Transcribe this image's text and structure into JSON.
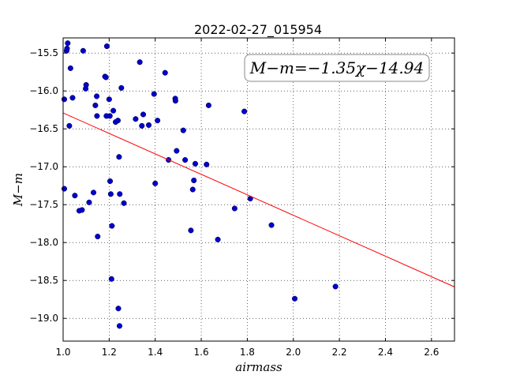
{
  "chart_data": {
    "type": "scatter",
    "title": "2022-02-27_015954",
    "xlabel": "airmass",
    "ylabel": "M−m",
    "xlim": [
      1.0,
      2.7
    ],
    "ylim": [
      -19.3,
      -15.3
    ],
    "xticks": [
      "1.0",
      "1.2",
      "1.4",
      "1.6",
      "1.8",
      "2.0",
      "2.2",
      "2.4",
      "2.6"
    ],
    "yticks": [
      "-15.5",
      "-16.0",
      "-16.5",
      "-17.0",
      "-17.5",
      "-18.0",
      "-18.5",
      "-19.0"
    ],
    "grid": true,
    "annotation": "M−m=−1.35χ−14.94",
    "fit": {
      "slope": -1.35,
      "intercept": -14.94,
      "color": "#ff0000"
    },
    "marker_color": "#0000cc",
    "points": [
      [
        1.005,
        -16.11
      ],
      [
        1.005,
        -17.29
      ],
      [
        1.015,
        -15.47
      ],
      [
        1.017,
        -15.44
      ],
      [
        1.02,
        -15.37
      ],
      [
        1.027,
        -16.46
      ],
      [
        1.032,
        -15.7
      ],
      [
        1.041,
        -16.09
      ],
      [
        1.051,
        -17.38
      ],
      [
        1.07,
        -17.58
      ],
      [
        1.082,
        -17.57
      ],
      [
        1.087,
        -15.47
      ],
      [
        1.098,
        -15.97
      ],
      [
        1.1,
        -15.92
      ],
      [
        1.113,
        -17.47
      ],
      [
        1.132,
        -17.34
      ],
      [
        1.14,
        -16.19
      ],
      [
        1.146,
        -16.07
      ],
      [
        1.147,
        -16.33
      ],
      [
        1.15,
        -17.92
      ],
      [
        1.182,
        -15.81
      ],
      [
        1.186,
        -15.82
      ],
      [
        1.188,
        -16.33
      ],
      [
        1.19,
        -15.41
      ],
      [
        1.2,
        -16.11
      ],
      [
        1.203,
        -16.33
      ],
      [
        1.204,
        -17.19
      ],
      [
        1.207,
        -17.36
      ],
      [
        1.21,
        -18.48
      ],
      [
        1.212,
        -17.78
      ],
      [
        1.218,
        -16.26
      ],
      [
        1.228,
        -16.41
      ],
      [
        1.238,
        -16.39
      ],
      [
        1.24,
        -18.87
      ],
      [
        1.243,
        -16.87
      ],
      [
        1.245,
        -19.1
      ],
      [
        1.246,
        -17.36
      ],
      [
        1.253,
        -15.96
      ],
      [
        1.264,
        -17.48
      ],
      [
        1.315,
        -16.37
      ],
      [
        1.333,
        -15.62
      ],
      [
        1.342,
        -16.46
      ],
      [
        1.348,
        -16.31
      ],
      [
        1.372,
        -16.45
      ],
      [
        1.395,
        -16.04
      ],
      [
        1.4,
        -17.22
      ],
      [
        1.41,
        -16.39
      ],
      [
        1.443,
        -15.76
      ],
      [
        1.458,
        -16.91
      ],
      [
        1.487,
        -16.1
      ],
      [
        1.488,
        -16.13
      ],
      [
        1.493,
        -16.79
      ],
      [
        1.522,
        -16.52
      ],
      [
        1.53,
        -16.91
      ],
      [
        1.555,
        -17.84
      ],
      [
        1.563,
        -17.3
      ],
      [
        1.568,
        -17.18
      ],
      [
        1.574,
        -16.96
      ],
      [
        1.623,
        -16.97
      ],
      [
        1.632,
        -16.19
      ],
      [
        1.672,
        -17.96
      ],
      [
        1.745,
        -17.55
      ],
      [
        1.787,
        -16.27
      ],
      [
        1.813,
        -17.42
      ],
      [
        1.905,
        -17.77
      ],
      [
        2.006,
        -18.74
      ],
      [
        2.183,
        -18.58
      ]
    ]
  }
}
